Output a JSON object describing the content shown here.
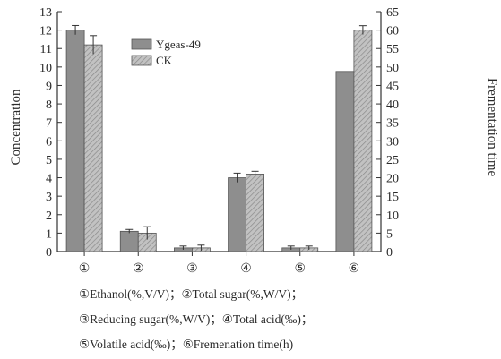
{
  "chart_data": {
    "type": "bar",
    "categories": [
      "①",
      "②",
      "③",
      "④",
      "⑤",
      "⑥"
    ],
    "series": [
      {
        "name": "Ygeas-49",
        "values": [
          12.0,
          1.1,
          0.2,
          4.0,
          0.2,
          48.8
        ],
        "errors": [
          0.25,
          0.1,
          0.1,
          0.25,
          0.1,
          0.0
        ],
        "axis": "left/right"
      },
      {
        "name": "CK",
        "values": [
          11.2,
          1.0,
          0.2,
          4.2,
          0.2,
          60.0
        ],
        "errors": [
          0.5,
          0.35,
          0.15,
          0.15,
          0.1,
          1.2
        ]
      }
    ],
    "left_axis": {
      "label": "Concentration",
      "ylim": [
        0,
        13
      ],
      "ticks": [
        "0",
        "1",
        "2",
        "3",
        "4",
        "5",
        "6",
        "7",
        "8",
        "9",
        "10",
        "11",
        "12",
        "13"
      ]
    },
    "right_axis": {
      "label": "Frementation time",
      "ylim": [
        0,
        65
      ],
      "ticks": [
        "0",
        "5",
        "10",
        "15",
        "20",
        "25",
        "30",
        "35",
        "40",
        "45",
        "50",
        "55",
        "60",
        "65"
      ]
    },
    "colors": {
      "Ygeas-49": "#8e8e8e",
      "CK": "#b4b4b4"
    },
    "legend_position": "top-left",
    "grid": false,
    "notes": [
      "①Ethanol(%,V/V)；②Total sugar(%,W/V)；",
      "③Reducing sugar(%,W/V)；④Total acid(‰)；",
      "⑤Volatile acid(‰)；⑥Fremenation time(h)"
    ]
  }
}
